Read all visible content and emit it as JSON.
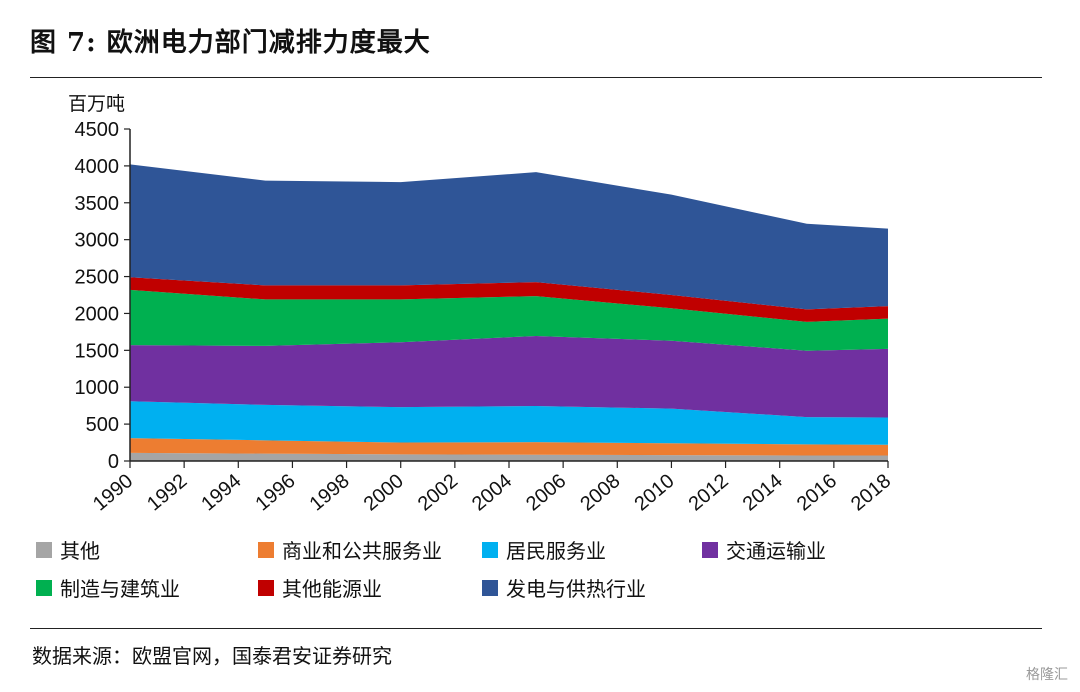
{
  "figure": {
    "title": "图  7: 欧洲电力部门减排力度最大",
    "source": "数据来源：欧盟官网，国泰君安证券研究",
    "watermark": "格隆汇"
  },
  "chart_data": {
    "type": "area",
    "stacked": true,
    "ylabel": "百万吨",
    "xlabel": "",
    "ylim": [
      0,
      4500
    ],
    "yticks": [
      0,
      500,
      1000,
      1500,
      2000,
      2500,
      3000,
      3500,
      4000,
      4500
    ],
    "xticks": [
      1990,
      1992,
      1994,
      1996,
      1998,
      2000,
      2002,
      2004,
      2006,
      2008,
      2010,
      2012,
      2014,
      2016,
      2018
    ],
    "x": [
      1990,
      1995,
      2000,
      2005,
      2010,
      2015,
      2018
    ],
    "series": [
      {
        "name": "其他",
        "color": "#a5a5a5",
        "values": [
          110,
          100,
          90,
          85,
          80,
          75,
          75
        ]
      },
      {
        "name": "商业和公共服务业",
        "color": "#ed7d31",
        "values": [
          200,
          180,
          160,
          170,
          160,
          150,
          145
        ]
      },
      {
        "name": "居民服务业",
        "color": "#00b0f0",
        "values": [
          500,
          480,
          480,
          490,
          470,
          370,
          370
        ]
      },
      {
        "name": "交通运输业",
        "color": "#7030a0",
        "values": [
          760,
          800,
          880,
          950,
          920,
          900,
          930
        ]
      },
      {
        "name": "制造与建筑业",
        "color": "#00b050",
        "values": [
          750,
          630,
          580,
          540,
          440,
          390,
          410
        ]
      },
      {
        "name": "其他能源业",
        "color": "#c00000",
        "values": [
          170,
          190,
          190,
          190,
          180,
          170,
          170
        ]
      },
      {
        "name": "发电与供热行业",
        "color": "#2f5597",
        "values": [
          1530,
          1420,
          1400,
          1490,
          1360,
          1160,
          1050
        ]
      }
    ],
    "grid": false,
    "legend_position": "bottom"
  }
}
